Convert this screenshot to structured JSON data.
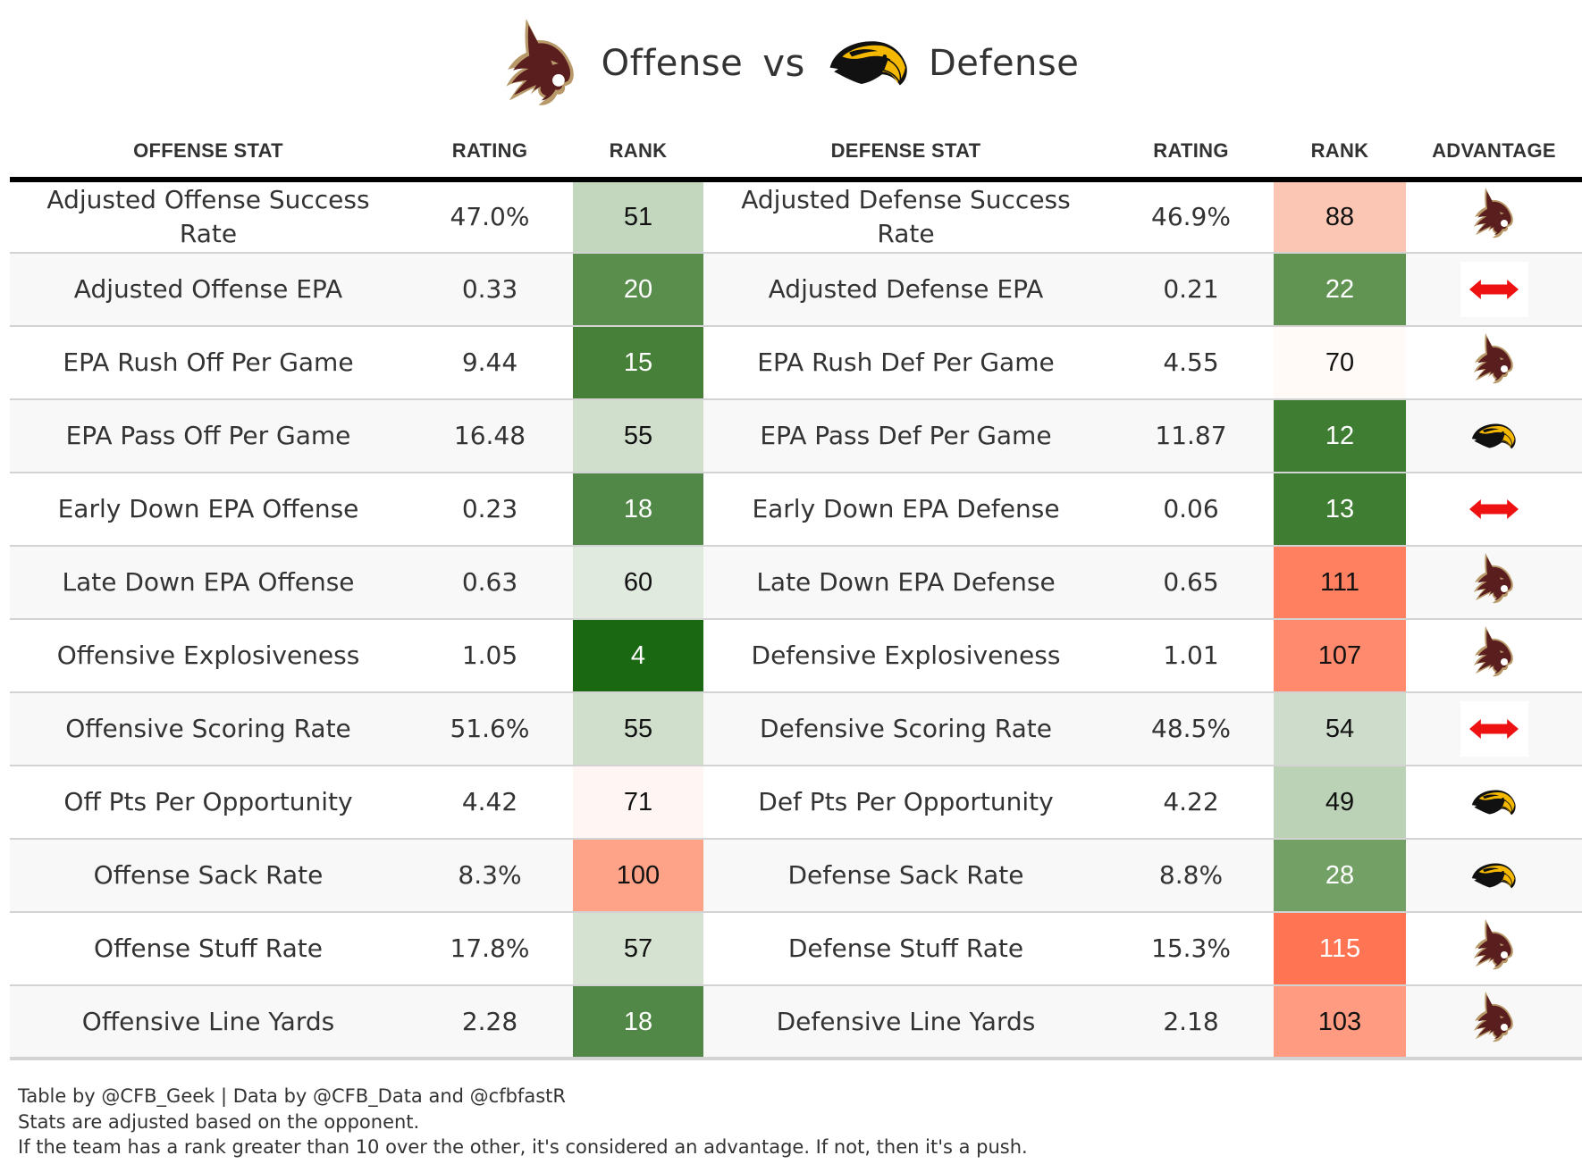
{
  "header": {
    "offense_label": "Offense",
    "vs_label": "vs",
    "defense_label": "Defense",
    "offense_logo": "bobcat-logo",
    "defense_logo": "golden-eagle-logo"
  },
  "columns": {
    "offense_stat": "OFFENSE STAT",
    "offense_rating": "RATING",
    "offense_rank": "RANK",
    "defense_stat": "DEFENSE STAT",
    "defense_rating": "RATING",
    "defense_rank": "RANK",
    "advantage": "ADVANTAGE"
  },
  "colors": {
    "offense_team_primary": "#5a1e1e",
    "offense_team_secondary": "#b8996a",
    "defense_team_primary": "#f5b800",
    "defense_team_secondary": "#111111",
    "push_arrow": "#ee1111",
    "row_alt_bg": "#f8f8f8",
    "header_rule": "#000000"
  },
  "rows": [
    {
      "offense_stat": "Adjusted Offense Success Rate",
      "offense_rating": "47.0%",
      "offense_rank": "51",
      "offense_rank_color": "#c2d7bd",
      "offense_rank_light": false,
      "defense_stat": "Adjusted Defense Success Rate",
      "defense_rating": "46.9%",
      "defense_rank": "88",
      "defense_rank_color": "#fcc6b4",
      "defense_rank_light": false,
      "advantage": "offense"
    },
    {
      "offense_stat": "Adjusted Offense EPA",
      "offense_rating": "0.33",
      "offense_rank": "20",
      "offense_rank_color": "#5a8e4d",
      "offense_rank_light": true,
      "defense_stat": "Adjusted Defense EPA",
      "defense_rating": "0.21",
      "defense_rank": "22",
      "defense_rank_color": "#619352",
      "defense_rank_light": true,
      "advantage": "push"
    },
    {
      "offense_stat": "EPA Rush Off Per Game",
      "offense_rating": "9.44",
      "offense_rank": "15",
      "offense_rank_color": "#478139",
      "offense_rank_light": true,
      "defense_stat": "EPA Rush Def Per Game",
      "defense_rating": "4.55",
      "defense_rank": "70",
      "defense_rank_color": "#fffaf7",
      "defense_rank_light": false,
      "advantage": "offense"
    },
    {
      "offense_stat": "EPA Pass Off Per Game",
      "offense_rating": "16.48",
      "offense_rank": "55",
      "offense_rank_color": "#d0dfcb",
      "offense_rank_light": false,
      "defense_stat": "EPA Pass Def Per Game",
      "defense_rating": "11.87",
      "defense_rank": "12",
      "defense_rank_color": "#3f7d33",
      "defense_rank_light": true,
      "advantage": "defense"
    },
    {
      "offense_stat": "Early Down EPA Offense",
      "offense_rating": "0.23",
      "offense_rank": "18",
      "offense_rank_color": "#528847",
      "offense_rank_light": true,
      "defense_stat": "Early Down EPA Defense",
      "defense_rating": "0.06",
      "defense_rank": "13",
      "defense_rank_color": "#3f7d33",
      "defense_rank_light": true,
      "advantage": "push"
    },
    {
      "offense_stat": "Late Down EPA Offense",
      "offense_rating": "0.63",
      "offense_rank": "60",
      "offense_rank_color": "#e1eadf",
      "offense_rank_light": false,
      "defense_stat": "Late Down EPA Defense",
      "defense_rating": "0.65",
      "defense_rank": "111",
      "defense_rank_color": "#fe8061",
      "defense_rank_light": false,
      "advantage": "offense"
    },
    {
      "offense_stat": "Offensive Explosiveness",
      "offense_rating": "1.05",
      "offense_rank": "4",
      "offense_rank_color": "#1a6912",
      "offense_rank_light": true,
      "defense_stat": "Defensive Explosiveness",
      "defense_rating": "1.01",
      "defense_rank": "107",
      "defense_rank_color": "#ff8a6d",
      "defense_rank_light": false,
      "advantage": "offense"
    },
    {
      "offense_stat": "Offensive Scoring Rate",
      "offense_rating": "51.6%",
      "offense_rank": "55",
      "offense_rank_color": "#d0dfcb",
      "offense_rank_light": false,
      "defense_stat": "Defensive Scoring Rate",
      "defense_rating": "48.5%",
      "defense_rank": "54",
      "defense_rank_color": "#cedccb",
      "defense_rank_light": false,
      "advantage": "push"
    },
    {
      "offense_stat": "Off Pts Per Opportunity",
      "offense_rating": "4.42",
      "offense_rank": "71",
      "offense_rank_color": "#fff6f3",
      "offense_rank_light": false,
      "defense_stat": "Def Pts Per Opportunity",
      "defense_rating": "4.22",
      "defense_rank": "49",
      "defense_rank_color": "#bcd2b6",
      "defense_rank_light": false,
      "advantage": "defense"
    },
    {
      "offense_stat": "Offense Sack Rate",
      "offense_rating": "8.3%",
      "offense_rank": "100",
      "offense_rank_color": "#fea387",
      "offense_rank_light": false,
      "defense_stat": "Defense Sack Rate",
      "defense_rating": "8.8%",
      "defense_rank": "28",
      "defense_rank_color": "#72a065",
      "defense_rank_light": true,
      "advantage": "defense"
    },
    {
      "offense_stat": "Offense Stuff Rate",
      "offense_rating": "17.8%",
      "offense_rank": "57",
      "offense_rank_color": "#d5e2d1",
      "offense_rank_light": false,
      "defense_stat": "Defense Stuff Rate",
      "defense_rating": "15.3%",
      "defense_rank": "115",
      "defense_rank_color": "#ff7554",
      "defense_rank_light": true,
      "advantage": "offense"
    },
    {
      "offense_stat": "Offensive Line Yards",
      "offense_rating": "2.28",
      "offense_rank": "18",
      "offense_rank_color": "#528847",
      "offense_rank_light": true,
      "defense_stat": "Defensive Line Yards",
      "defense_rating": "2.18",
      "defense_rank": "103",
      "defense_rank_color": "#ff9b80",
      "defense_rank_light": false,
      "advantage": "offense"
    }
  ],
  "footer": {
    "line1": "Table by @CFB_Geek | Data by @CFB_Data and @cfbfastR",
    "line2": "Stats are adjusted based on the opponent.",
    "line3": "If the team has a rank greater than 10 over the other, it's considered an advantage. If not, then it's a push."
  }
}
